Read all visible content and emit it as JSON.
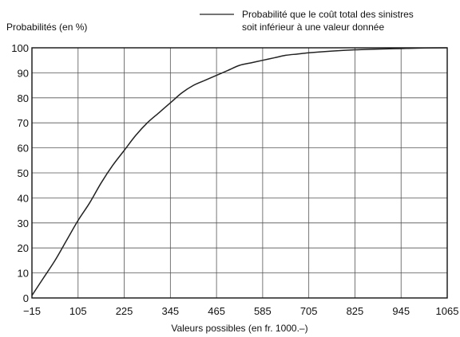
{
  "chart_data": {
    "type": "line",
    "ylabel": "Probabilités (en  %)",
    "xlabel": "Valeurs possibles (en fr. 1000.–)",
    "legend": {
      "lines": [
        "Probabilité que le coût total des sinistres",
        "soit inférieur à une valeur donnée"
      ],
      "placement": "top-right"
    },
    "xlim": [
      -15,
      1065
    ],
    "ylim": [
      0,
      100
    ],
    "x_ticks": [
      -15,
      105,
      225,
      345,
      465,
      585,
      705,
      825,
      945,
      1065
    ],
    "x_tick_labels": [
      "−15",
      "105",
      "225",
      "345",
      "465",
      "585",
      "705",
      "825",
      "945",
      "1065"
    ],
    "y_ticks": [
      0,
      10,
      20,
      30,
      40,
      50,
      60,
      70,
      80,
      90,
      100
    ],
    "grid": true,
    "series": [
      {
        "x": [
          -15,
          15,
          45,
          75,
          105,
          135,
          165,
          195,
          225,
          255,
          285,
          315,
          345,
          375,
          405,
          435,
          465,
          495,
          525,
          555,
          585,
          615,
          645,
          675,
          705,
          765,
          825,
          885,
          945,
          1005,
          1065
        ],
        "y": [
          1,
          8,
          15,
          23,
          31,
          38,
          46,
          53,
          59,
          65,
          70,
          74,
          78,
          82,
          85,
          87,
          89,
          91,
          93,
          94,
          95,
          96,
          97,
          97.5,
          98,
          98.7,
          99.2,
          99.5,
          99.7,
          99.9,
          100
        ],
        "color": "#222222"
      }
    ]
  }
}
